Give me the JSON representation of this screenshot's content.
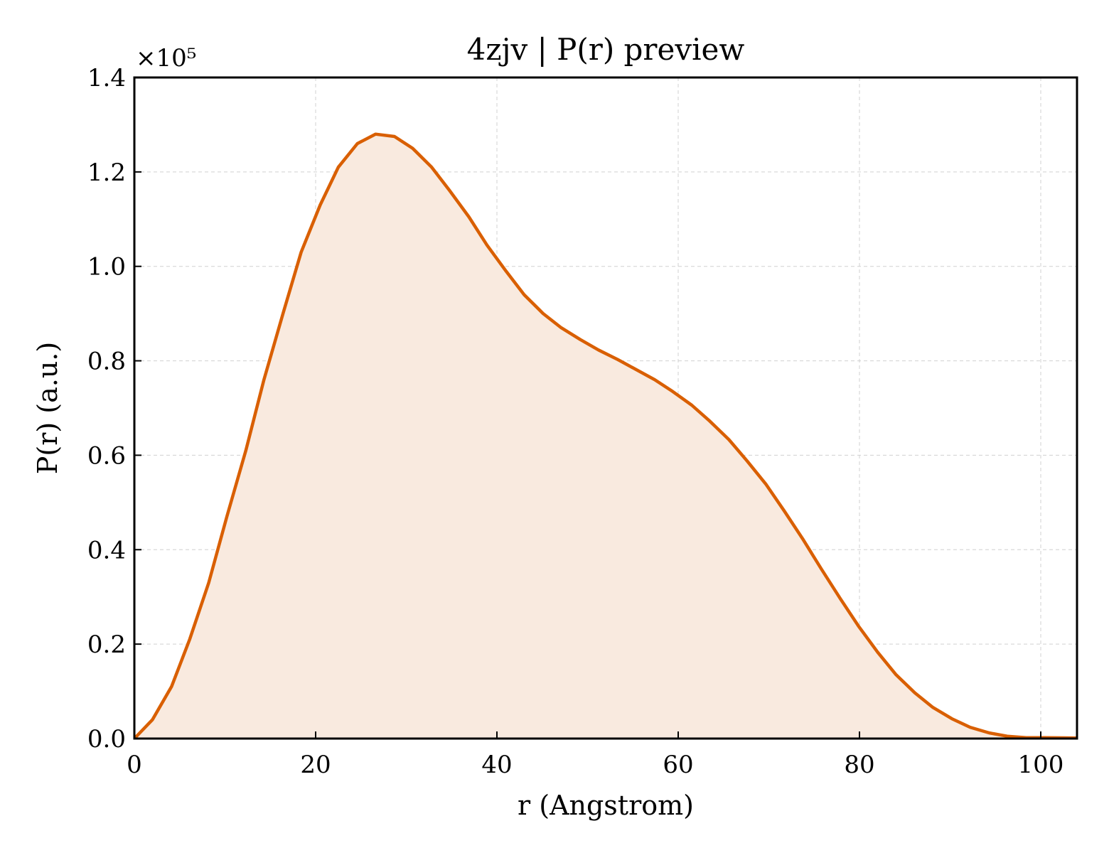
{
  "chart_data": {
    "type": "area",
    "title": "4zjv | P(r) preview",
    "xlabel": "r (Angstrom)",
    "ylabel": "P(r) (a.u.)",
    "y_multiplier_label": "×10⁵",
    "xlim": [
      0,
      104
    ],
    "ylim": [
      0,
      1.4
    ],
    "y_scale_note": "values in units of 1e5",
    "x_ticks": [
      0,
      20,
      40,
      60,
      80,
      100
    ],
    "x_tick_labels": [
      "0",
      "20",
      "40",
      "60",
      "80",
      "100"
    ],
    "y_ticks": [
      0,
      0.2,
      0.4,
      0.6,
      0.8,
      1.0,
      1.2,
      1.4
    ],
    "y_tick_labels": [
      "0.0",
      "0.2",
      "0.4",
      "0.6",
      "0.8",
      "1.0",
      "1.2",
      "1.4"
    ],
    "grid": true,
    "colors": {
      "line": "#d95f02",
      "fill": "#f9eadf"
    },
    "series": [
      {
        "x": [
          0,
          2,
          4.1,
          6.1,
          8.2,
          10.2,
          12.3,
          14.3,
          16.4,
          18.4,
          20.5,
          22.5,
          24.6,
          26.6,
          28.7,
          30.7,
          32.8,
          34.8,
          36.9,
          38.9,
          41.0,
          43.0,
          45.1,
          47.1,
          49.2,
          51.2,
          53.3,
          55.3,
          57.4,
          59.4,
          61.5,
          63.5,
          65.6,
          67.6,
          69.7,
          71.7,
          73.8,
          75.8,
          77.9,
          79.9,
          82.0,
          84.0,
          86.1,
          88.1,
          90.2,
          92.2,
          94.3,
          96.3,
          98.4,
          100.4,
          102.5,
          104
        ],
        "values": [
          0.0,
          0.04,
          0.11,
          0.21,
          0.33,
          0.47,
          0.61,
          0.76,
          0.9,
          1.03,
          1.13,
          1.21,
          1.26,
          1.28,
          1.275,
          1.25,
          1.21,
          1.16,
          1.105,
          1.045,
          0.99,
          0.94,
          0.9,
          0.87,
          0.845,
          0.823,
          0.803,
          0.782,
          0.76,
          0.735,
          0.706,
          0.672,
          0.633,
          0.588,
          0.538,
          0.482,
          0.421,
          0.359,
          0.296,
          0.238,
          0.183,
          0.136,
          0.097,
          0.066,
          0.042,
          0.024,
          0.012,
          0.005,
          0.002,
          0.002,
          0.0015,
          0.001
        ]
      }
    ]
  }
}
